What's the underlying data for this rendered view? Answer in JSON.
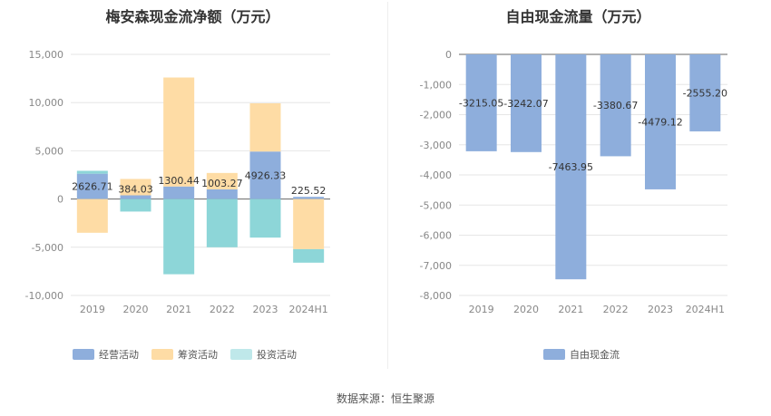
{
  "source_label": "数据来源：恒生聚源",
  "colors": {
    "operating": "#8eaedc",
    "financing": "#fedca5",
    "investing": "#8dd6d8",
    "fcf": "#8eaedc"
  },
  "chart_data": [
    {
      "type": "bar",
      "stacked": true,
      "title": "梅安森现金流净额（万元）",
      "categories": [
        "2019",
        "2020",
        "2021",
        "2022",
        "2023",
        "2024H1"
      ],
      "ylim": [
        -10000,
        15000
      ],
      "yticks": [
        15000,
        10000,
        5000,
        0,
        -5000,
        -10000
      ],
      "ytick_labels": [
        "15,000",
        "10,000",
        "5,000",
        "0",
        "-5,000",
        "-10,000"
      ],
      "grid": true,
      "legend_position": "bottom",
      "series": [
        {
          "name": "经营活动",
          "values": [
            2626.71,
            384.03,
            1300.44,
            1003.27,
            4926.33,
            225.52
          ]
        },
        {
          "name": "筹资活动",
          "values": [
            -3500,
            1700,
            11300,
            1700,
            5000,
            -5200
          ]
        },
        {
          "name": "投资活动",
          "values": [
            300,
            -1300,
            -7800,
            -5000,
            -4000,
            -1400
          ]
        }
      ],
      "data_labels": [
        "2626.71",
        "384.03",
        "1300.44",
        "1003.27",
        "4926.33",
        "225.52"
      ]
    },
    {
      "type": "bar",
      "title": "自由现金流量（万元）",
      "categories": [
        "2019",
        "2020",
        "2021",
        "2022",
        "2023",
        "2024H1"
      ],
      "ylim": [
        -8000,
        0
      ],
      "yticks": [
        0,
        -1000,
        -2000,
        -3000,
        -4000,
        -5000,
        -6000,
        -7000,
        -8000
      ],
      "ytick_labels": [
        "0",
        "-1,000",
        "-2,000",
        "-3,000",
        "-4,000",
        "-5,000",
        "-6,000",
        "-7,000",
        "-8,000"
      ],
      "grid": true,
      "legend_position": "bottom",
      "series": [
        {
          "name": "自由现金流",
          "values": [
            -3215.05,
            -3242.07,
            -7463.95,
            -3380.67,
            -4479.12,
            -2555.2
          ]
        }
      ],
      "data_labels": [
        "-3215.05",
        "-3242.07",
        "-7463.95",
        "-3380.67",
        "-4479.12",
        "-2555.20"
      ]
    }
  ]
}
